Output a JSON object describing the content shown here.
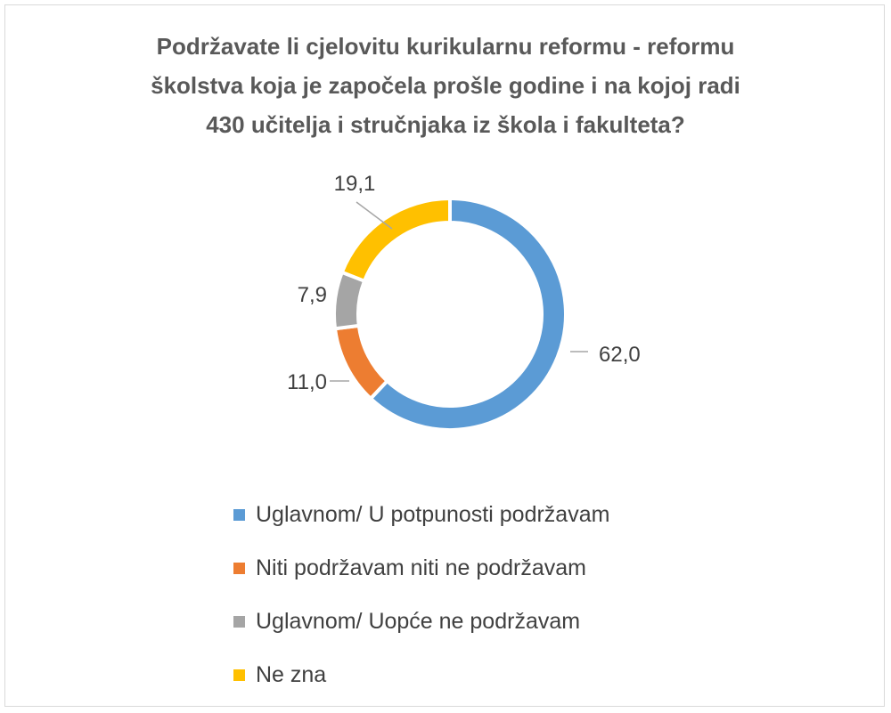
{
  "chart_data": {
    "type": "pie",
    "variant": "doughnut",
    "title": "Podržavate li cjelovitu kurikularnu reformu - reformu školstva koja je započela prošle godine i na kojoj radi 430 učitelja i stručnjaka iz škola i fakulteta?",
    "title_lines": [
      "Podržavate li cjelovitu kurikularnu reformu - reformu",
      "školstva koja je započela prošle godine i na kojoj radi",
      "430 učitelja i stručnjaka iz škola i fakulteta?"
    ],
    "categories": [
      "Uglavnom/ U potpunosti podržavam",
      "Niti podržavam niti ne podržavam",
      "Uglavnom/ Uopće ne podržavam",
      "Ne zna"
    ],
    "values": [
      62.0,
      11.0,
      7.9,
      19.1
    ],
    "value_labels": [
      "62,0",
      "11,0",
      "7,9",
      "19,1"
    ],
    "colors": [
      "#5b9bd5",
      "#ed7d31",
      "#a5a5a5",
      "#ffc000"
    ],
    "legend": "bottom"
  }
}
